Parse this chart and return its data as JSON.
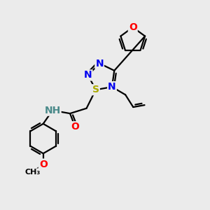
{
  "background_color": "#ebebeb",
  "atom_colors": {
    "N": "#0000ee",
    "O": "#ff0000",
    "S": "#aaaa00",
    "C": "#000000",
    "H": "#4a8a8a"
  },
  "bond_color": "#000000",
  "bond_width": 1.6,
  "font_size_atoms": 10,
  "xlim": [
    0,
    10
  ],
  "ylim": [
    0,
    10
  ]
}
